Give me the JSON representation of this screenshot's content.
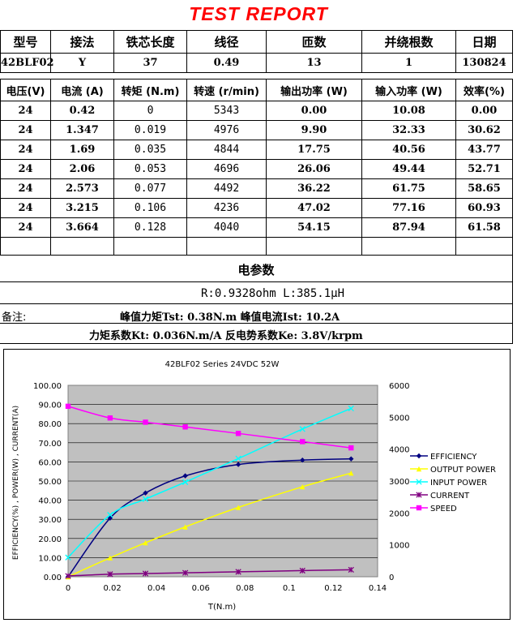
{
  "report_title": "TEST REPORT",
  "spec_headers": [
    "型号",
    "接法",
    "铁芯长度",
    "线径",
    "匝数",
    "并绕根数",
    "日期"
  ],
  "spec_values": [
    "42BLF02",
    "Y",
    "37",
    "0.49",
    "13",
    "1",
    "130824"
  ],
  "data_headers": [
    "电压(V)",
    "电流 (A)",
    "转矩 (N.m)",
    "转速 (r/min)",
    "输出功率 (W)",
    "输入功率 (W)",
    "效率(%)"
  ],
  "rows": [
    [
      "24",
      "0.42",
      "0",
      "5343",
      "0.00",
      "10.08",
      "0.00"
    ],
    [
      "24",
      "1.347",
      "0.019",
      "4976",
      "9.90",
      "32.33",
      "30.62"
    ],
    [
      "24",
      "1.69",
      "0.035",
      "4844",
      "17.75",
      "40.56",
      "43.77"
    ],
    [
      "24",
      "2.06",
      "0.053",
      "4696",
      "26.06",
      "49.44",
      "52.71"
    ],
    [
      "24",
      "2.573",
      "0.077",
      "4492",
      "36.22",
      "61.75",
      "58.65"
    ],
    [
      "24",
      "3.215",
      "0.106",
      "4236",
      "47.02",
      "77.16",
      "60.93"
    ],
    [
      "24",
      "3.664",
      "0.128",
      "4040",
      "54.15",
      "87.94",
      "61.58"
    ]
  ],
  "elec_title": "电参数",
  "elec_params": "R:0.9328ohm  L:385.1μH",
  "remarks_label": "备注:",
  "peak_line": "峰值力矩Tst: 0.38N.m   峰值电流Ist: 10.2A",
  "coef_line": "力矩系数Kt: 0.036N.m/A   反电势系数Ke: 3.8V/krpm",
  "chart_data": {
    "type": "line",
    "title": "42BLF02 Series 24VDC 52W",
    "xlabel": "T(N.m)",
    "ylabel": "EFFICIENCY(%) , POWER(W) , CURRENT(A)",
    "y2label": "",
    "xlim": [
      0,
      0.14
    ],
    "ylim": [
      0,
      100
    ],
    "y2lim": [
      0,
      6000
    ],
    "x_ticks": [
      "0",
      "0.02",
      "0.04",
      "0.06",
      "0.08",
      "0.1",
      "0.12",
      "0.14"
    ],
    "y_ticks": [
      "0.00",
      "10.00",
      "20.00",
      "30.00",
      "40.00",
      "50.00",
      "60.00",
      "70.00",
      "80.00",
      "90.00",
      "100.00"
    ],
    "y2_ticks": [
      "0",
      "1000",
      "2000",
      "3000",
      "4000",
      "5000",
      "6000"
    ],
    "x": [
      0,
      0.019,
      0.035,
      0.053,
      0.077,
      0.106,
      0.128
    ],
    "legend_position": "right",
    "plot_background": "#c0c0c0",
    "series": [
      {
        "name": "EFFICIENCY",
        "axis": "left",
        "color": "#000080",
        "marker": "diamond",
        "values": [
          0.0,
          30.62,
          43.77,
          52.71,
          58.65,
          60.93,
          61.58
        ]
      },
      {
        "name": "OUTPUT POWER",
        "axis": "left",
        "color": "#ffff00",
        "marker": "triangle",
        "values": [
          0.0,
          9.9,
          17.75,
          26.06,
          36.22,
          47.02,
          54.15
        ]
      },
      {
        "name": "INPUT POWER",
        "axis": "left",
        "color": "#00ffff",
        "marker": "x",
        "values": [
          10.08,
          32.33,
          40.56,
          49.44,
          61.75,
          77.16,
          87.94
        ]
      },
      {
        "name": "CURRENT",
        "axis": "left",
        "color": "#800080",
        "marker": "star",
        "values": [
          0.42,
          1.347,
          1.69,
          2.06,
          2.573,
          3.215,
          3.664
        ]
      },
      {
        "name": "SPEED",
        "axis": "right",
        "color": "#ff00ff",
        "marker": "square",
        "values": [
          5343,
          4976,
          4844,
          4696,
          4492,
          4236,
          4040
        ]
      }
    ]
  }
}
